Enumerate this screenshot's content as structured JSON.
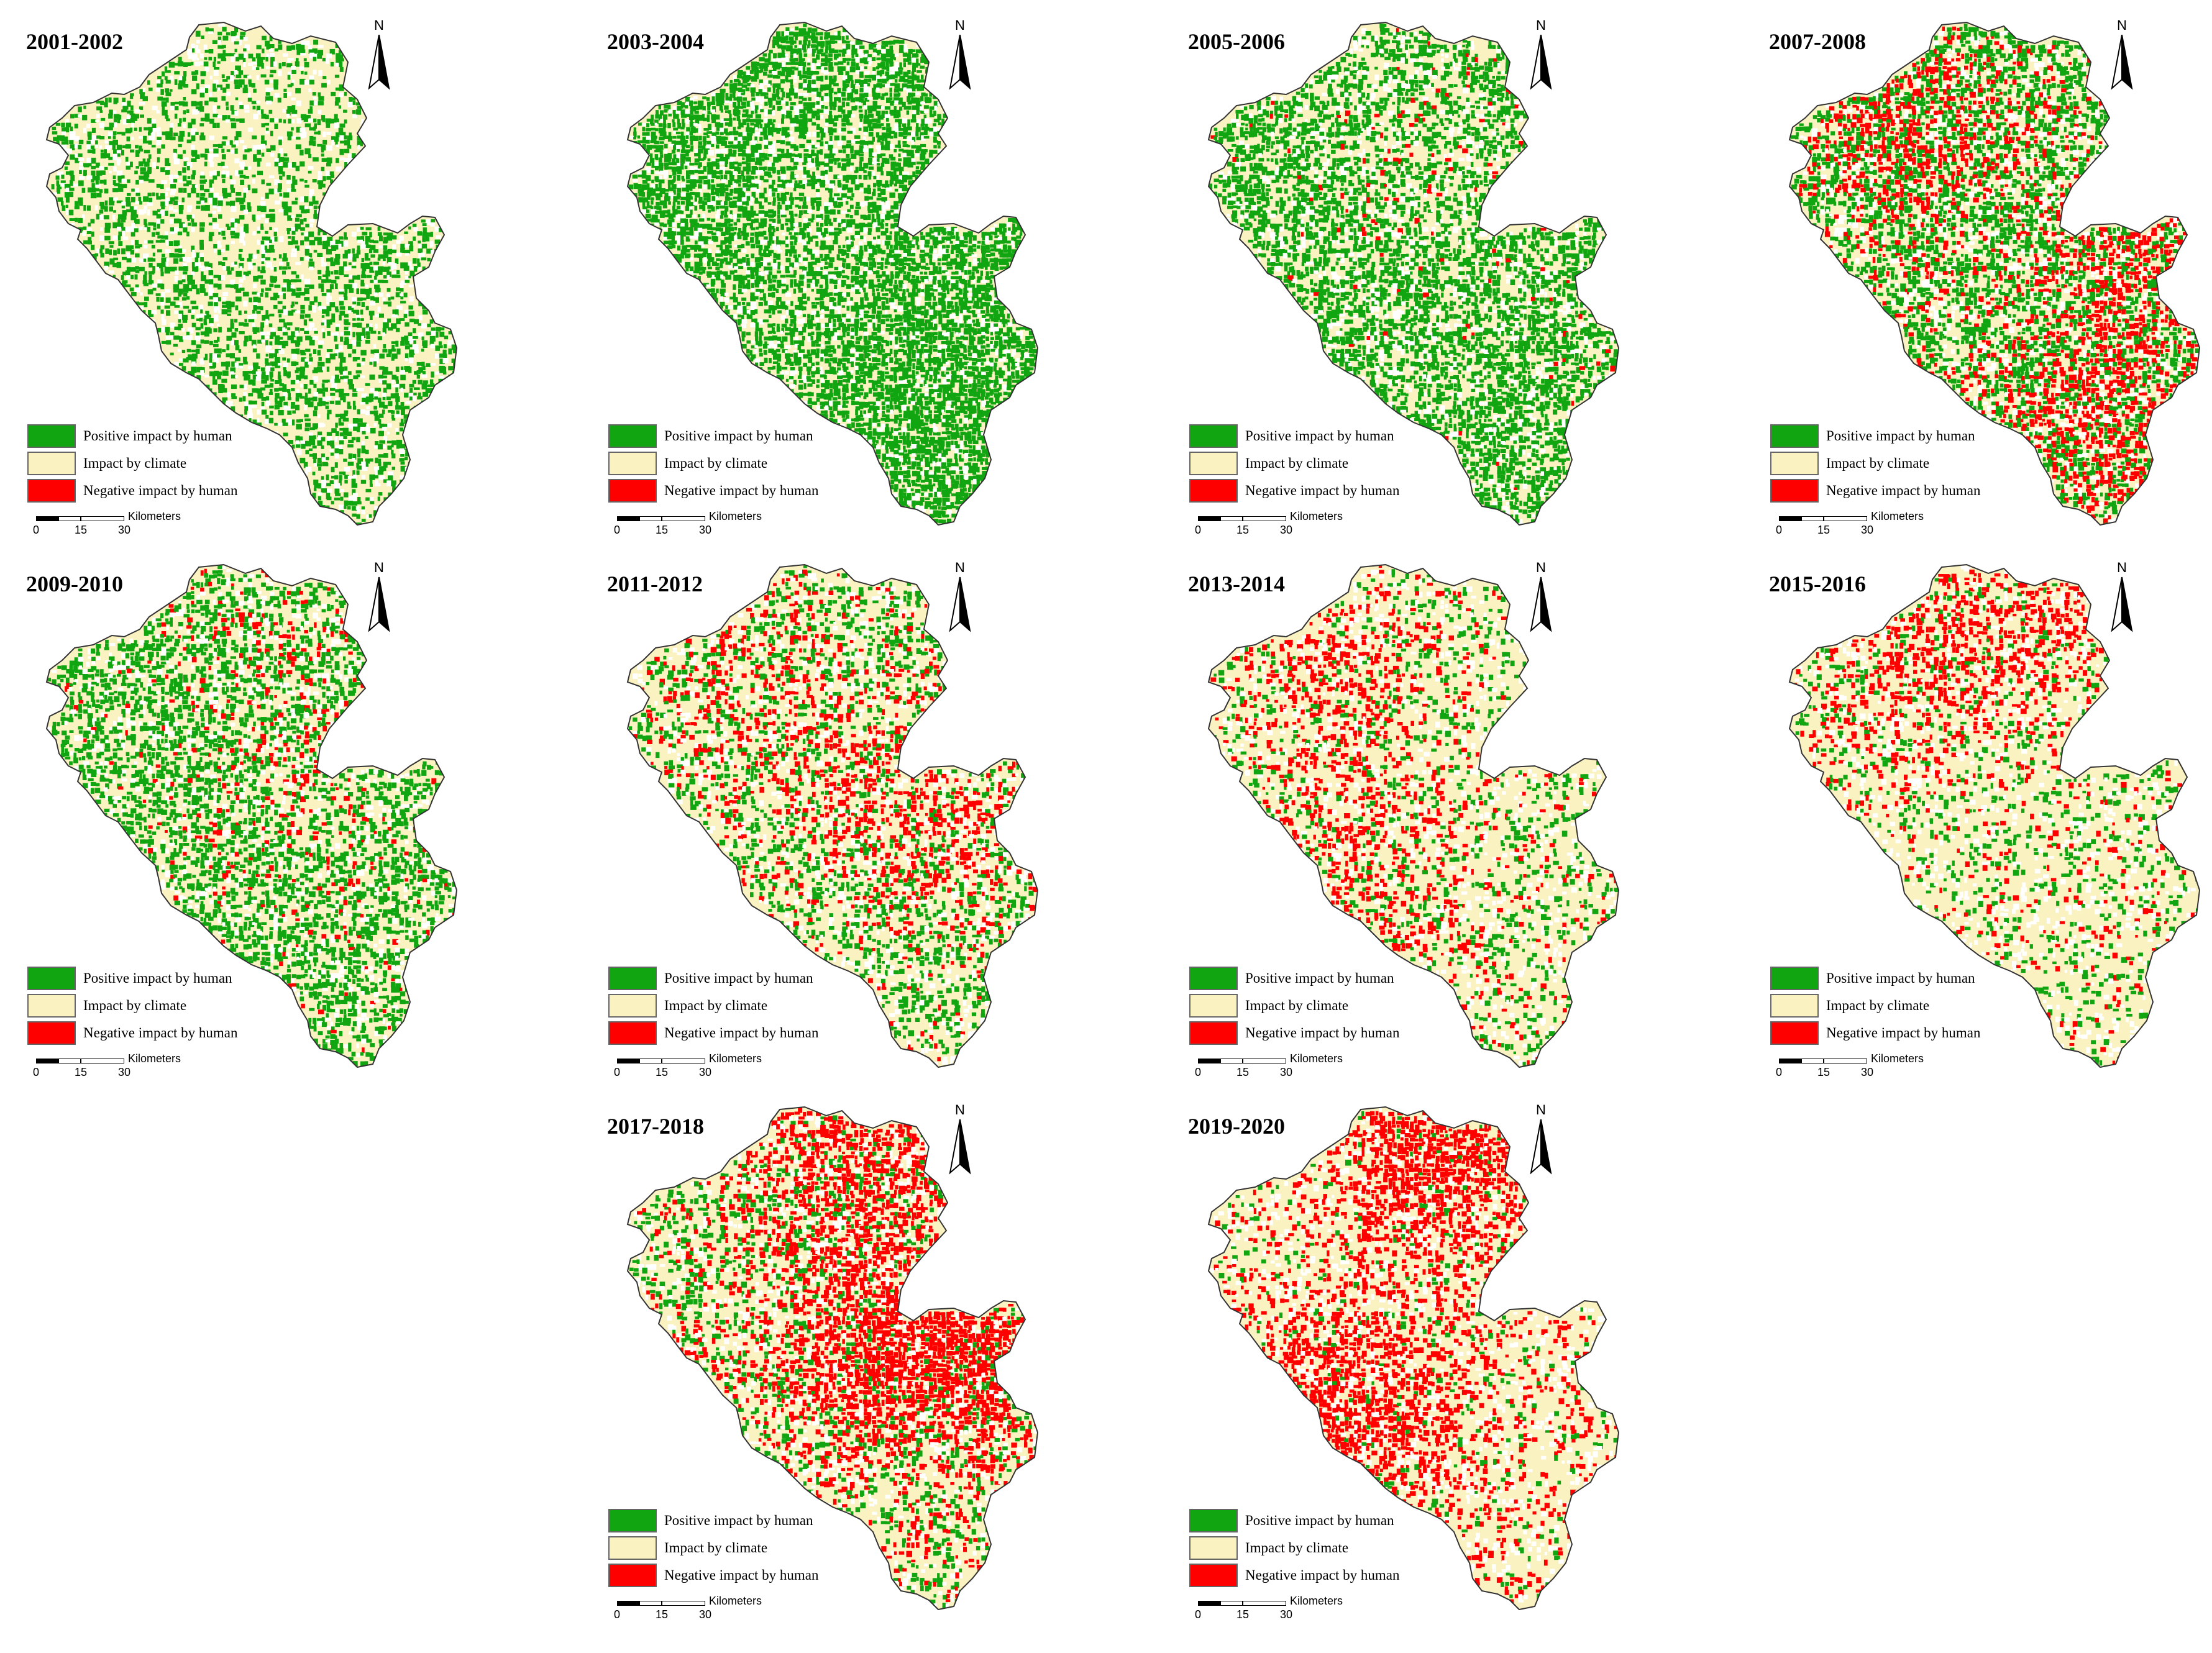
{
  "legend": {
    "items": [
      {
        "label": "Positive impact by human",
        "color": "#11A611",
        "category": "positive"
      },
      {
        "label": "Impact by climate",
        "color": "#FBF2C2",
        "category": "climate"
      },
      {
        "label": "Negative impact by human",
        "color": "#FF0000",
        "category": "negative"
      }
    ]
  },
  "north_arrow": {
    "letter": "N"
  },
  "scale_bar": {
    "unit": "Kilometers",
    "ticks": [
      "0",
      "15",
      "30"
    ]
  },
  "colors": {
    "outline": "#333333",
    "background": "#ffffff",
    "nodata": "#ffffff"
  },
  "panels": [
    {
      "title": "2001-2002",
      "positive": 0.2,
      "negative": 0.0,
      "hotspots": [
        "center-north"
      ]
    },
    {
      "title": "2003-2004",
      "positive": 0.4,
      "negative": 0.0,
      "hotspots": [
        "center-north",
        "south-west"
      ]
    },
    {
      "title": "2005-2006",
      "positive": 0.28,
      "negative": 0.02,
      "hotspots": [
        "center-north"
      ]
    },
    {
      "title": "2007-2008",
      "positive": 0.22,
      "negative": 0.16,
      "hotspots": [
        "north-west",
        "east",
        "south"
      ]
    },
    {
      "title": "2009-2010",
      "positive": 0.24,
      "negative": 0.05,
      "hotspots": [
        "north",
        "center"
      ]
    },
    {
      "title": "2011-2012",
      "positive": 0.14,
      "negative": 0.1,
      "hotspots": [
        "north-west",
        "center",
        "east"
      ]
    },
    {
      "title": "2013-2014",
      "positive": 0.08,
      "negative": 0.12,
      "hotspots": [
        "north-west",
        "south-west"
      ]
    },
    {
      "title": "2015-2016",
      "positive": 0.07,
      "negative": 0.12,
      "hotspots": [
        "north",
        "north-west"
      ]
    },
    {
      "title": "2017-2018",
      "positive": 0.1,
      "negative": 0.22,
      "hotspots": [
        "north",
        "center",
        "east"
      ]
    },
    {
      "title": "2019-2020",
      "positive": 0.03,
      "negative": 0.28,
      "hotspots": [
        "north",
        "south-west"
      ]
    }
  ]
}
